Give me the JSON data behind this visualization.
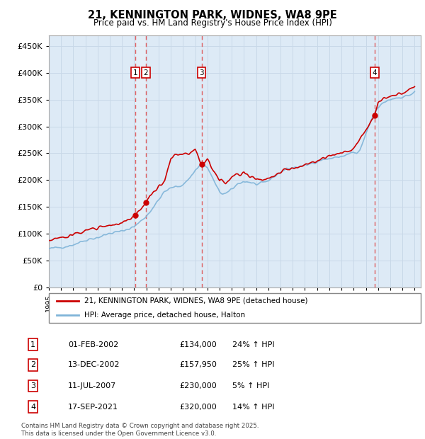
{
  "title": "21, KENNINGTON PARK, WIDNES, WA8 9PE",
  "subtitle": "Price paid vs. HM Land Registry's House Price Index (HPI)",
  "ylabel_ticks": [
    "£0",
    "£50K",
    "£100K",
    "£150K",
    "£200K",
    "£250K",
    "£300K",
    "£350K",
    "£400K",
    "£450K"
  ],
  "ytick_values": [
    0,
    50000,
    100000,
    150000,
    200000,
    250000,
    300000,
    350000,
    400000,
    450000
  ],
  "ylim": [
    0,
    470000
  ],
  "xlim_start": 1995.0,
  "xlim_end": 2025.5,
  "xtick_years": [
    1995,
    1996,
    1997,
    1998,
    1999,
    2000,
    2001,
    2002,
    2003,
    2004,
    2005,
    2006,
    2007,
    2008,
    2009,
    2010,
    2011,
    2012,
    2013,
    2014,
    2015,
    2016,
    2017,
    2018,
    2019,
    2020,
    2021,
    2022,
    2023,
    2024,
    2025
  ],
  "bg_color": "#ddeaf6",
  "grid_color": "#c8d8e8",
  "sale_color": "#cc0000",
  "hpi_color": "#7fb4d8",
  "vline_color": "#dd4444",
  "band_color": "#ddeaf6",
  "legend_sale": "21, KENNINGTON PARK, WIDNES, WA8 9PE (detached house)",
  "legend_hpi": "HPI: Average price, detached house, Halton",
  "transactions": [
    {
      "num": 1,
      "date": 2002.08,
      "price": 134000,
      "label": "1"
    },
    {
      "num": 2,
      "date": 2002.95,
      "price": 157950,
      "label": "2"
    },
    {
      "num": 3,
      "date": 2007.52,
      "price": 230000,
      "label": "3"
    },
    {
      "num": 4,
      "date": 2021.71,
      "price": 320000,
      "label": "4"
    }
  ],
  "table_rows": [
    {
      "num": "1",
      "date": "01-FEB-2002",
      "price": "£134,000",
      "hpi": "24% ↑ HPI"
    },
    {
      "num": "2",
      "date": "13-DEC-2002",
      "price": "£157,950",
      "hpi": "25% ↑ HPI"
    },
    {
      "num": "3",
      "date": "11-JUL-2007",
      "price": "£230,000",
      "hpi": "5% ↑ HPI"
    },
    {
      "num": "4",
      "date": "17-SEP-2021",
      "price": "£320,000",
      "hpi": "14% ↑ HPI"
    }
  ],
  "footer": "Contains HM Land Registry data © Crown copyright and database right 2025.\nThis data is licensed under the Open Government Licence v3.0."
}
